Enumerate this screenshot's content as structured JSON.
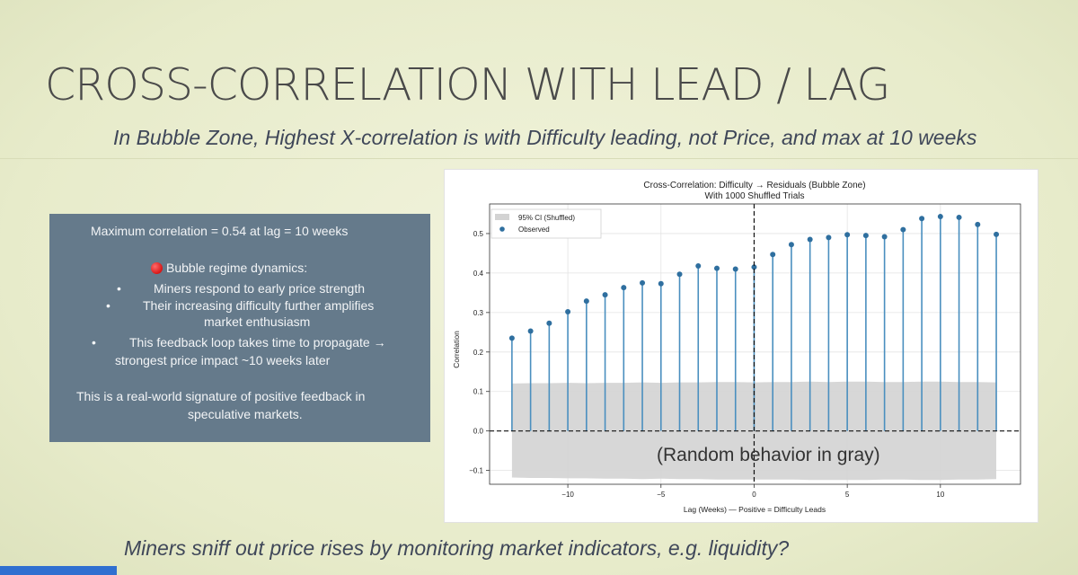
{
  "slide": {
    "title": "CROSS-CORRELATION WITH LEAD / LAG",
    "subtitle": "In Bubble Zone, Highest X-correlation is with Difficulty leading, not Price, and max at 10 weeks",
    "footer": "Miners sniff out price rises by monitoring market indicators, e.g. liquidity?"
  },
  "info_box": {
    "max_line": "Maximum correlation = 0.54 at lag = 10 weeks",
    "heading": "Bubble regime dynamics:",
    "bullet_1": "Miners respond to early price strength",
    "bullet_2a": "Their increasing difficulty further amplifies",
    "bullet_2b": "market enthusiasm",
    "bullet_3a": "This feedback loop takes time to propagate →",
    "bullet_3b": "strongest price impact ~10 weeks later",
    "closing_a": "This is a real-world signature of positive feedback in",
    "closing_b": "speculative markets.",
    "bullet_symbol": "•",
    "dot_color": "#e02020"
  },
  "chart_data": {
    "type": "stem",
    "title": "Cross-Correlation: Difficulty → Residuals (Bubble Zone)",
    "subtitle": "With 1000 Shuffled Trials",
    "xlabel": "Lag (Weeks) — Positive = Difficulty Leads",
    "ylabel": "Correlation",
    "xlim": [
      -14.2,
      14.3
    ],
    "ylim": [
      -0.135,
      0.575
    ],
    "xticks": [
      -10,
      -5,
      0,
      5,
      10
    ],
    "yticks": [
      -0.1,
      0.0,
      0.1,
      0.2,
      0.3,
      0.4,
      0.5
    ],
    "grid": true,
    "legend_position": "top-left",
    "legend": [
      "95% CI (Shuffled)",
      "Observed"
    ],
    "x": [
      -13,
      -12,
      -11,
      -10,
      -9,
      -8,
      -7,
      -6,
      -5,
      -4,
      -3,
      -2,
      -1,
      0,
      1,
      2,
      3,
      4,
      5,
      6,
      7,
      8,
      9,
      10,
      11,
      12,
      13
    ],
    "observed": [
      0.235,
      0.253,
      0.273,
      0.302,
      0.329,
      0.345,
      0.363,
      0.375,
      0.373,
      0.397,
      0.418,
      0.412,
      0.41,
      0.415,
      0.447,
      0.472,
      0.485,
      0.49,
      0.497,
      0.495,
      0.492,
      0.51,
      0.538,
      0.543,
      0.541,
      0.523,
      0.498
    ],
    "ci_upper": [
      0.12,
      0.121,
      0.121,
      0.122,
      0.121,
      0.122,
      0.122,
      0.123,
      0.122,
      0.123,
      0.123,
      0.124,
      0.124,
      0.123,
      0.124,
      0.124,
      0.125,
      0.124,
      0.125,
      0.125,
      0.124,
      0.124,
      0.125,
      0.125,
      0.124,
      0.124,
      0.123
    ],
    "ci_lower": [
      -0.118,
      -0.119,
      -0.119,
      -0.12,
      -0.12,
      -0.121,
      -0.121,
      -0.122,
      -0.121,
      -0.122,
      -0.122,
      -0.123,
      -0.123,
      -0.123,
      -0.123,
      -0.123,
      -0.124,
      -0.124,
      -0.124,
      -0.124,
      -0.123,
      -0.123,
      -0.124,
      -0.124,
      -0.123,
      -0.123,
      -0.122
    ],
    "colors": {
      "stem": "#4a8fbf",
      "marker": "#2f6f9f",
      "ci_band": "#d3d3d3",
      "grid": "#e3e3e3"
    },
    "annotation": "(Random behavior in gray)"
  }
}
